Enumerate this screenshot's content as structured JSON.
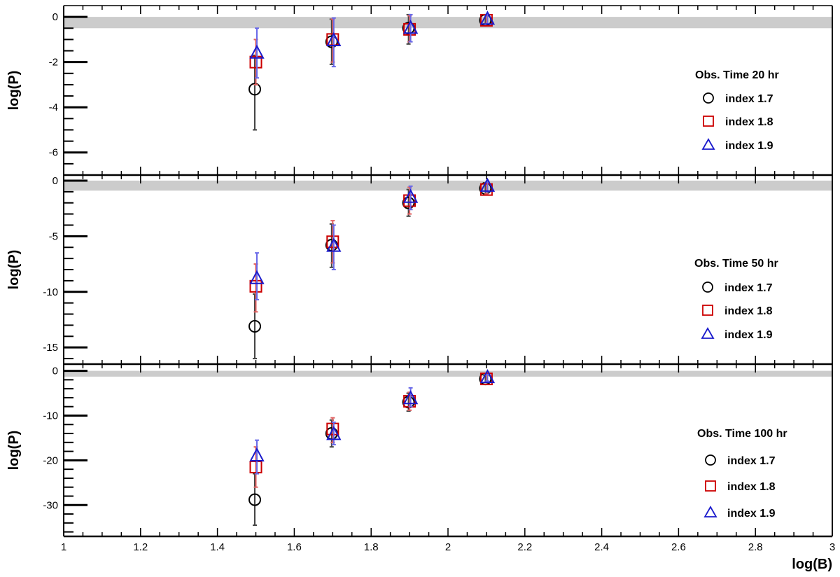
{
  "colors": {
    "black": "#000000",
    "red": "#cc0000",
    "blue": "#1a1acc",
    "band": "#cccccc",
    "errorbar_black": "#444444",
    "errorbar_red": "#e06060",
    "errorbar_blue": "#6a6ae8"
  },
  "chart_data": [
    {
      "type": "scatter",
      "title": "",
      "ylabel": "log(P)",
      "xlabel": "",
      "xlim": [
        1,
        3
      ],
      "ylim": [
        -7,
        0.5
      ],
      "yticks": [
        0,
        -2,
        -4,
        -6
      ],
      "yminor_step": 0.5,
      "band": [
        -0.5,
        0
      ],
      "grid": false,
      "legend_position": "right",
      "legend_title": "Obs. Time 20 hr",
      "series": [
        {
          "name": "index 1.7",
          "marker": "circle",
          "color": "black",
          "x": [
            1.5,
            1.7,
            1.9,
            2.1
          ],
          "y": [
            -3.2,
            -1.1,
            -0.5,
            -0.15
          ],
          "ylo": [
            -5.0,
            -2.1,
            -1.2,
            -0.3
          ],
          "yhi": [
            -1.7,
            -0.1,
            0.1,
            0.1
          ]
        },
        {
          "name": "index 1.8",
          "marker": "square",
          "color": "red",
          "x": [
            1.5,
            1.7,
            1.9,
            2.1
          ],
          "y": [
            -2.0,
            -1.0,
            -0.55,
            -0.15
          ],
          "ylo": [
            -3.0,
            -2.0,
            -1.1,
            -0.3
          ],
          "yhi": [
            -1.0,
            -0.1,
            0.05,
            0.1
          ]
        },
        {
          "name": "index 1.9",
          "marker": "triangle",
          "color": "blue",
          "x": [
            1.5,
            1.7,
            1.9,
            2.1
          ],
          "y": [
            -1.6,
            -1.05,
            -0.5,
            -0.1
          ],
          "ylo": [
            -2.7,
            -2.2,
            -1.1,
            -0.3
          ],
          "yhi": [
            -0.5,
            -0.05,
            0.1,
            0.1
          ]
        }
      ]
    },
    {
      "type": "scatter",
      "title": "",
      "ylabel": "log(P)",
      "xlabel": "",
      "xlim": [
        1,
        3
      ],
      "ylim": [
        -16.5,
        0.5
      ],
      "yticks": [
        0,
        -5,
        -10,
        -15
      ],
      "yminor_step": 1,
      "band": [
        -0.9,
        0
      ],
      "grid": false,
      "legend_position": "right",
      "legend_title": "Obs. Time 50 hr",
      "series": [
        {
          "name": "index 1.7",
          "marker": "circle",
          "color": "black",
          "x": [
            1.5,
            1.7,
            1.9,
            2.1
          ],
          "y": [
            -13.1,
            -5.8,
            -2.0,
            -0.7
          ],
          "ylo": [
            -16.0,
            -7.8,
            -3.2,
            -1.2
          ],
          "yhi": [
            -10.2,
            -3.9,
            -0.8,
            -0.2
          ]
        },
        {
          "name": "index 1.8",
          "marker": "square",
          "color": "red",
          "x": [
            1.5,
            1.7,
            1.9,
            2.1
          ],
          "y": [
            -9.5,
            -5.5,
            -1.8,
            -0.8
          ],
          "ylo": [
            -11.8,
            -7.4,
            -3.0,
            -1.2
          ],
          "yhi": [
            -7.5,
            -3.6,
            -0.6,
            -0.2
          ]
        },
        {
          "name": "index 1.9",
          "marker": "triangle",
          "color": "blue",
          "x": [
            1.5,
            1.7,
            1.9,
            2.1
          ],
          "y": [
            -8.8,
            -5.9,
            -1.5,
            -0.5
          ],
          "ylo": [
            -10.7,
            -8.0,
            -2.6,
            -1.0
          ],
          "yhi": [
            -6.5,
            -4.0,
            -0.5,
            -0.1
          ]
        }
      ]
    },
    {
      "type": "scatter",
      "title": "",
      "ylabel": "log(P)",
      "xlabel": "log(B)",
      "xlim": [
        1,
        3
      ],
      "ylim": [
        -37,
        1.5
      ],
      "yticks": [
        0,
        -10,
        -20,
        -30
      ],
      "yminor_step": 2,
      "xticks": [
        1,
        1.2,
        1.4,
        1.6,
        1.8,
        2,
        2.2,
        2.4,
        2.6,
        2.8,
        3
      ],
      "xtick_labels": [
        "1",
        "1.2",
        "1.4",
        "1.6",
        "1.8",
        "2",
        "2.2",
        "2.4",
        "2.6",
        "2.8",
        "3"
      ],
      "xminor_step": 0.05,
      "band": [
        -1.3,
        0
      ],
      "grid": false,
      "legend_position": "right",
      "legend_title": "Obs. Time 100 hr",
      "series": [
        {
          "name": "index 1.7",
          "marker": "circle",
          "color": "black",
          "x": [
            1.5,
            1.7,
            1.9,
            2.1
          ],
          "y": [
            -28.8,
            -14.0,
            -7.0,
            -1.8
          ],
          "ylo": [
            -34.5,
            -17.0,
            -9.0,
            -2.6
          ],
          "yhi": [
            -23.0,
            -11.0,
            -5.0,
            -1.0
          ]
        },
        {
          "name": "index 1.8",
          "marker": "square",
          "color": "red",
          "x": [
            1.5,
            1.7,
            1.9,
            2.1
          ],
          "y": [
            -21.5,
            -13.0,
            -6.8,
            -1.8
          ],
          "ylo": [
            -26.0,
            -16.0,
            -8.8,
            -2.6
          ],
          "yhi": [
            -17.0,
            -10.5,
            -4.8,
            -1.0
          ]
        },
        {
          "name": "index 1.9",
          "marker": "triangle",
          "color": "blue",
          "x": [
            1.5,
            1.7,
            1.9,
            2.1
          ],
          "y": [
            -19.0,
            -14.2,
            -6.2,
            -1.5
          ],
          "ylo": [
            -23.0,
            -16.5,
            -8.0,
            -2.3
          ],
          "yhi": [
            -15.5,
            -11.5,
            -3.8,
            -0.8
          ]
        }
      ]
    }
  ]
}
